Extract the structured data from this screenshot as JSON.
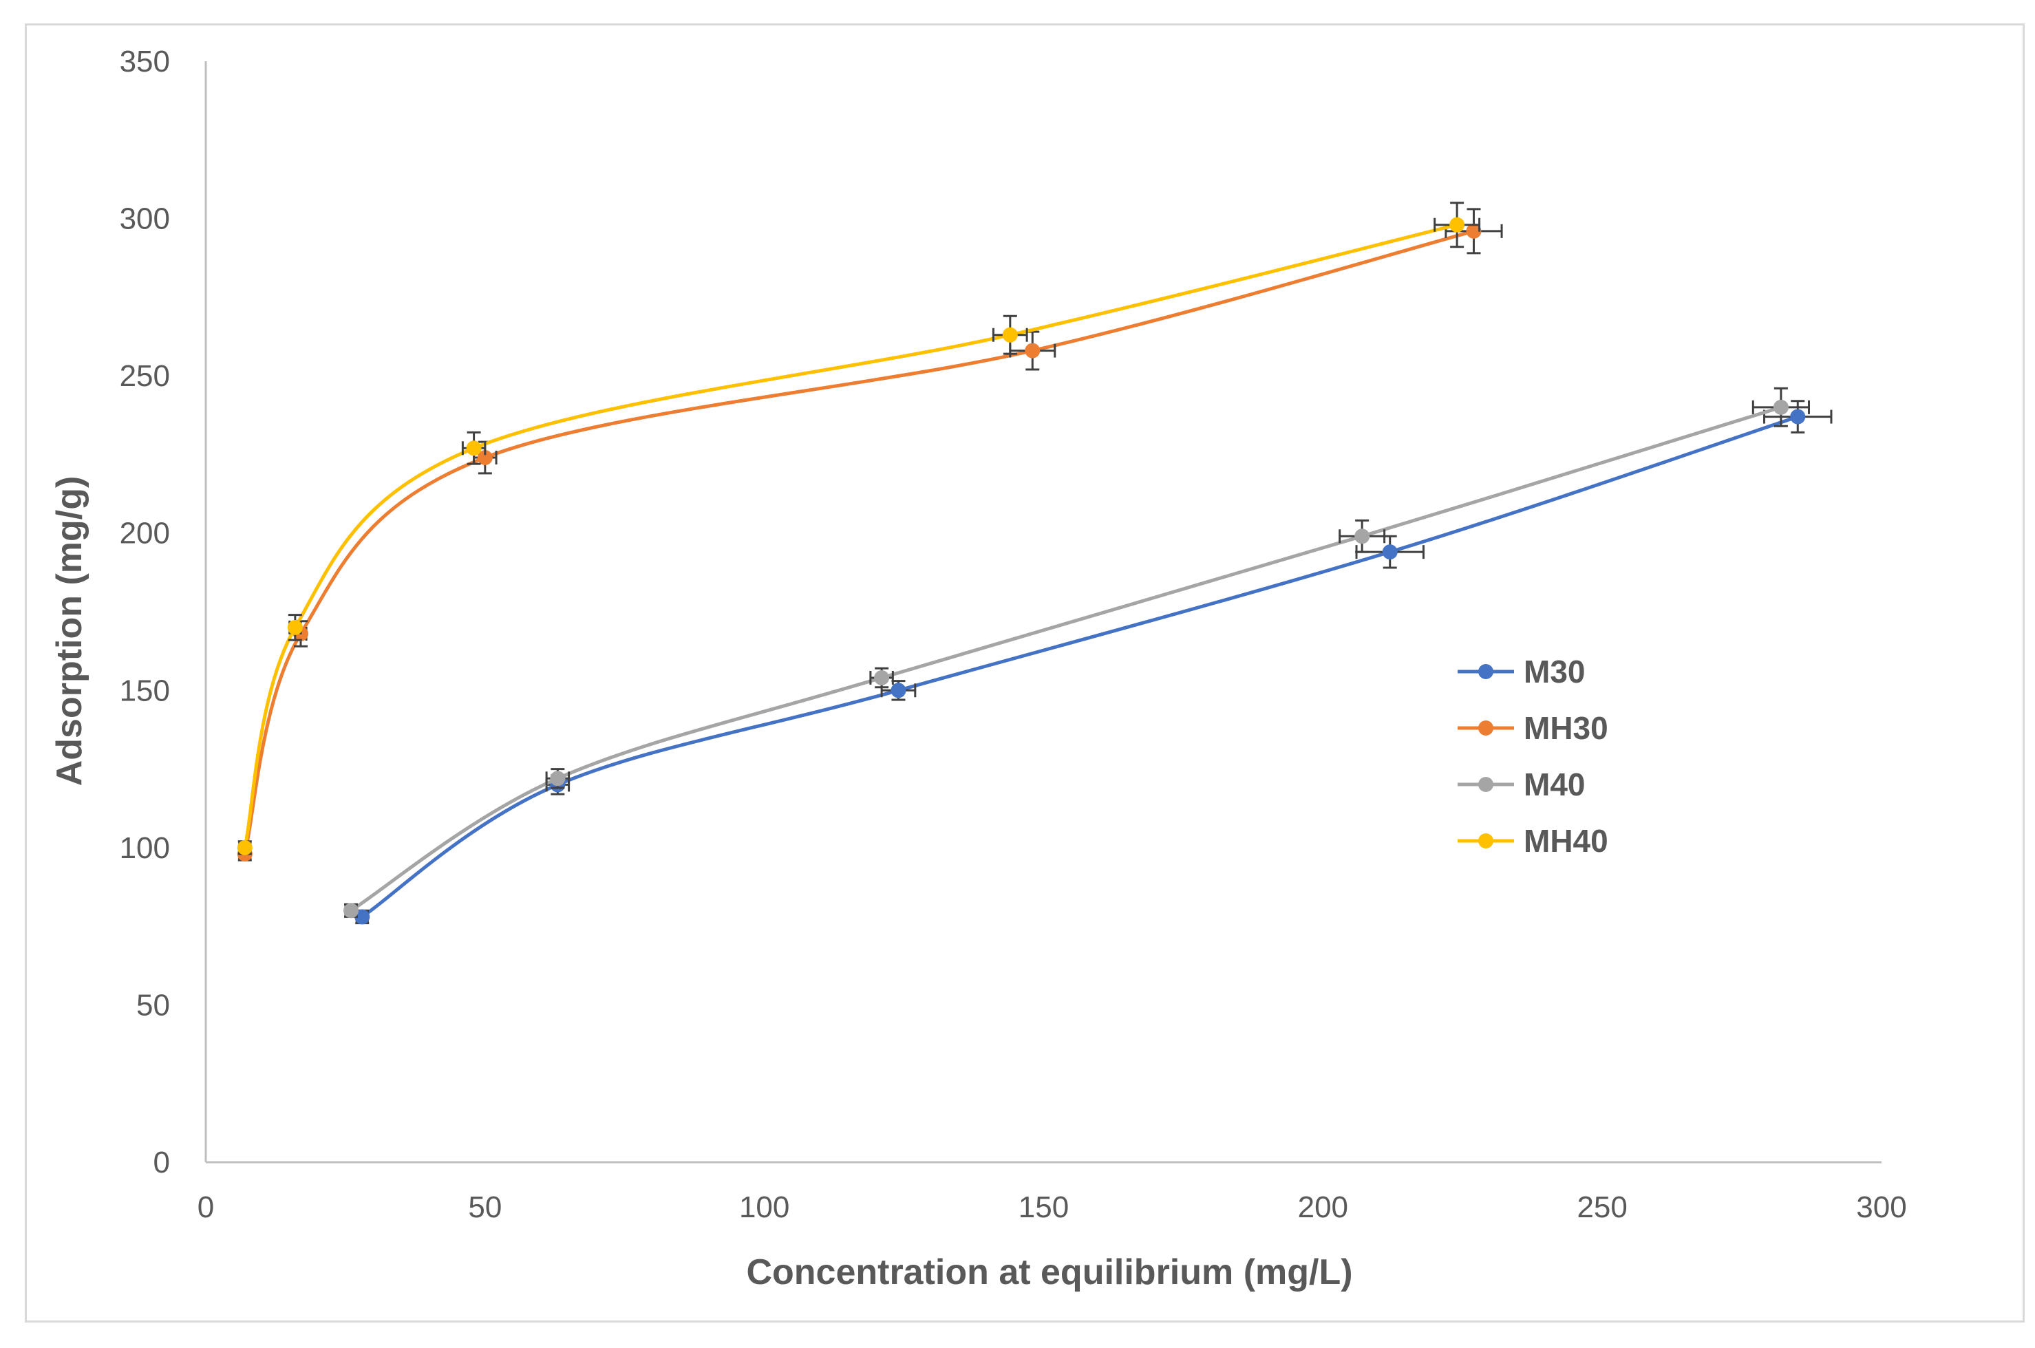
{
  "chart_data": {
    "type": "line",
    "title": "",
    "xlabel": "Concentration at equilibrium (mg/L)",
    "ylabel": "Adsorption (mg/g)",
    "xlim": [
      0,
      300
    ],
    "ylim": [
      0,
      350
    ],
    "xticks": [
      0,
      50,
      100,
      150,
      200,
      250,
      300
    ],
    "yticks": [
      0,
      50,
      100,
      150,
      200,
      250,
      300,
      350
    ],
    "grid": false,
    "smooth": true,
    "legend_position": "right",
    "series": [
      {
        "name": "M30",
        "color": "#4472c4",
        "x": [
          28,
          63,
          124,
          212,
          285
        ],
        "y": [
          78,
          120,
          150,
          194,
          237
        ],
        "xerr": [
          1,
          2,
          3,
          6,
          6
        ],
        "yerr": [
          2,
          3,
          3,
          5,
          5
        ]
      },
      {
        "name": "MH30",
        "color": "#ed7d31",
        "x": [
          7,
          17,
          50,
          148,
          227
        ],
        "y": [
          98,
          168,
          224,
          258,
          296
        ],
        "xerr": [
          1,
          1,
          2,
          4,
          5
        ],
        "yerr": [
          2,
          4,
          5,
          6,
          7
        ]
      },
      {
        "name": "M40",
        "color": "#a5a5a5",
        "x": [
          26,
          63,
          121,
          207,
          282
        ],
        "y": [
          80,
          122,
          154,
          199,
          240
        ],
        "xerr": [
          1,
          2,
          2,
          4,
          5
        ],
        "yerr": [
          2,
          3,
          3,
          5,
          6
        ]
      },
      {
        "name": "MH40",
        "color": "#ffc000",
        "x": [
          7,
          16,
          48,
          144,
          224
        ],
        "y": [
          100,
          170,
          227,
          263,
          298
        ],
        "xerr": [
          1,
          1,
          2,
          3,
          4
        ],
        "yerr": [
          2,
          4,
          5,
          6,
          7
        ]
      }
    ]
  }
}
